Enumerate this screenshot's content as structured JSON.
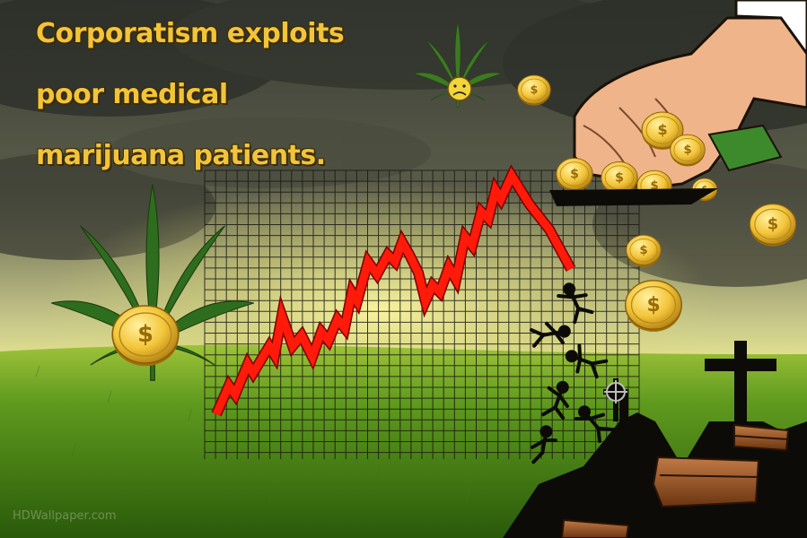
{
  "caption": {
    "line1": "Corporatism exploits",
    "line2": "poor medical",
    "line3": "marijuana patients."
  },
  "watermark": "HDWallpaper.com",
  "colors": {
    "caption_text": "#f2c43a",
    "trend_line": "#ff1a0a",
    "leaf": "#2f6d1e",
    "coin": "#f3c53a",
    "coffin": "#8a4a1e",
    "silhouette": "#0c0b08"
  },
  "icons": {
    "cross": "cross-icon",
    "celtic_cross": "celtic-cross-icon",
    "dollar_coin": "dollar-coin-icon",
    "sad_face": "sad-face-icon"
  }
}
